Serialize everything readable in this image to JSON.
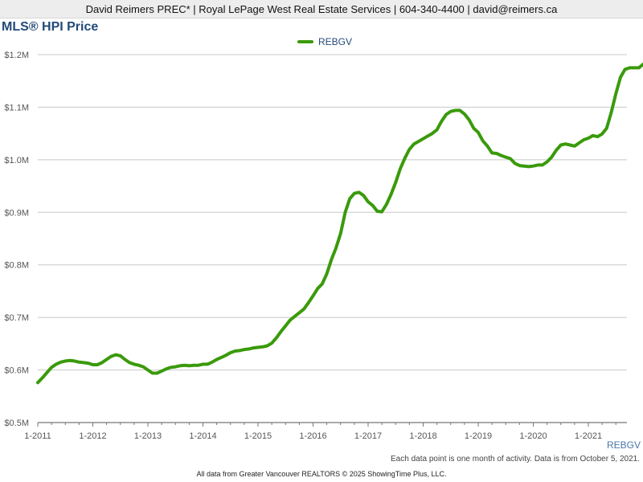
{
  "header": {
    "agent_info": "David Reimers PREC* | Royal LePage West Real Estate Services | 604-340-4400 | david@reimers.ca"
  },
  "chart_data": {
    "type": "line",
    "title": "MLS® HPI Price",
    "legend_position": "top-center",
    "grid": true,
    "xlabel": "",
    "ylabel": "",
    "x_tick_labels": [
      "1-2011",
      "1-2012",
      "1-2013",
      "1-2014",
      "1-2015",
      "1-2016",
      "1-2017",
      "1-2018",
      "1-2019",
      "1-2020",
      "1-2021"
    ],
    "y_tick_labels": [
      "$0.5M",
      "$0.6M",
      "$0.7M",
      "$0.8M",
      "$0.9M",
      "$1.0M",
      "$1.1M",
      "$1.2M"
    ],
    "ylim": [
      0.5,
      1.2
    ],
    "y_unit": "millions CAD",
    "x_start": "2011-01",
    "series": [
      {
        "name": "REBGV",
        "color": "#3a9a0b",
        "values": [
          0.576,
          0.585,
          0.595,
          0.605,
          0.611,
          0.615,
          0.617,
          0.618,
          0.617,
          0.615,
          0.614,
          0.613,
          0.61,
          0.61,
          0.614,
          0.62,
          0.626,
          0.629,
          0.627,
          0.62,
          0.614,
          0.611,
          0.609,
          0.606,
          0.6,
          0.594,
          0.594,
          0.598,
          0.602,
          0.605,
          0.606,
          0.608,
          0.609,
          0.608,
          0.609,
          0.609,
          0.611,
          0.611,
          0.615,
          0.62,
          0.624,
          0.628,
          0.633,
          0.636,
          0.637,
          0.639,
          0.64,
          0.642,
          0.643,
          0.644,
          0.646,
          0.651,
          0.661,
          0.673,
          0.684,
          0.695,
          0.702,
          0.709,
          0.716,
          0.728,
          0.741,
          0.755,
          0.764,
          0.783,
          0.81,
          0.832,
          0.86,
          0.9,
          0.926,
          0.936,
          0.938,
          0.932,
          0.92,
          0.913,
          0.902,
          0.901,
          0.915,
          0.934,
          0.957,
          0.983,
          1.003,
          1.02,
          1.03,
          1.035,
          1.04,
          1.045,
          1.05,
          1.057,
          1.073,
          1.086,
          1.092,
          1.094,
          1.094,
          1.087,
          1.076,
          1.06,
          1.052,
          1.036,
          1.026,
          1.013,
          1.012,
          1.008,
          1.005,
          1.002,
          0.993,
          0.989,
          0.988,
          0.987,
          0.988,
          0.99,
          0.99,
          0.996,
          1.005,
          1.018,
          1.028,
          1.03,
          1.028,
          1.026,
          1.032,
          1.038,
          1.041,
          1.046,
          1.044,
          1.049,
          1.06,
          1.09,
          1.126,
          1.157,
          1.172,
          1.175,
          1.175,
          1.175,
          1.182,
          1.186
        ]
      }
    ]
  },
  "source_label": "REBGV",
  "note": "Each data point is one month of activity. Data is from October 5, 2021.",
  "footer": "All data from Greater Vancouver REALTORS © 2025 ShowingTime Plus, LLC."
}
